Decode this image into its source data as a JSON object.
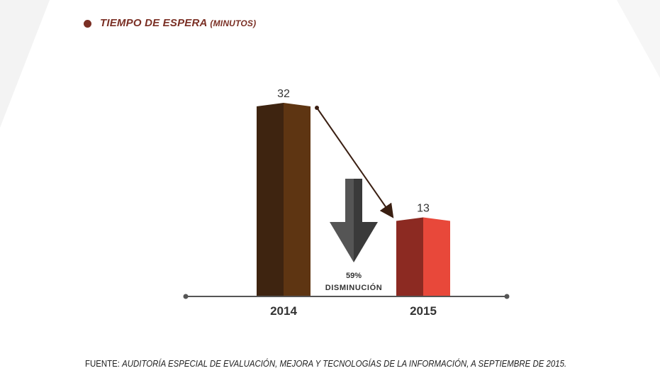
{
  "header": {
    "title": "TIEMPO DE ESPERA",
    "subtitle": "(MINUTOS)"
  },
  "colors": {
    "accent": "#7a2f24",
    "bar_2014_dark": "#3e2410",
    "bar_2014_light": "#5e3512",
    "bar_2015_dark": "#8c2a22",
    "bar_2015_light": "#e8483a",
    "axis": "#555555",
    "arrow": "#444444"
  },
  "chart_data": {
    "type": "bar",
    "categories": [
      "2014",
      "2015"
    ],
    "values": [
      32,
      13
    ],
    "value_labels": [
      "32",
      "13"
    ],
    "ylim": [
      0,
      32
    ],
    "annotation": {
      "percent": "59%",
      "label": "DISMINUCIÓN"
    },
    "icon": "down-arrow-icon"
  },
  "footer": {
    "source_label": "FUENTE:",
    "source_text": "AUDITORÍA ESPECIAL DE EVALUACIÓN, MEJORA Y TECNOLOGÍAS DE LA INFORMACIÓN, A SEPTIEMBRE DE 2015."
  }
}
